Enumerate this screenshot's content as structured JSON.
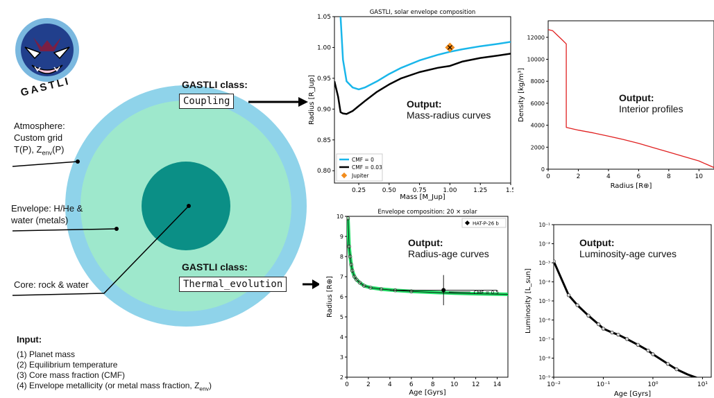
{
  "logo": {
    "text": "GASTLI"
  },
  "planet": {
    "atmosphere": [
      "Atmosphere:",
      "Custom grid",
      "T(P), Z"
    ],
    "atmosphere_sub": "env",
    "atmosphere_tail": "(P)",
    "envelope": [
      "Envelope: H/He &",
      "water (metals)"
    ],
    "core": "Core: rock & water"
  },
  "classes": {
    "label": "GASTLI class:",
    "coupling": "Coupling",
    "thermal": "Thermal_evolution"
  },
  "inputs": {
    "title": "Input:",
    "items": [
      "(1) Planet mass",
      "(2) Equilibrium temperature",
      "(3) Core mass fraction (CMF)",
      "(4) Envelope metallicity (or metal mass fraction, Z"
    ],
    "last_sub": "env",
    "last_tail": ")"
  },
  "outputs": {
    "mass_radius": {
      "title": "Output:",
      "sub": "Mass-radius curves"
    },
    "interior": {
      "title": "Output:",
      "sub": "Interior profiles"
    },
    "radius_age": {
      "title": "Output:",
      "sub": "Radius-age curves"
    },
    "lum_age": {
      "title": "Output:",
      "sub": "Luminosity-age curves"
    }
  },
  "colors": {
    "atmosphere": "#8fd3ea",
    "envelope": "#9ee8cc",
    "core": "#0b8f86",
    "cmf0": "#19b6ea",
    "cmf003": "#000000",
    "density": "#e02020",
    "jupiter": "#f28c1c",
    "evolution": "#22dd66"
  },
  "chart_data": [
    {
      "type": "line",
      "title": "GASTLI, solar envelope composition",
      "xlabel": "Mass [M_Jup]",
      "ylabel": "Radius [R_Jup]",
      "xlim": [
        0.05,
        1.5
      ],
      "ylim": [
        0.78,
        1.05
      ],
      "xticks": [
        "0.25",
        "0.50",
        "0.75",
        "1.00",
        "1.25",
        "1.5"
      ],
      "yticks": [
        "0.80",
        "0.85",
        "0.90",
        "0.95",
        "1.00",
        "1.05"
      ],
      "series": [
        {
          "name": "CMF = 0",
          "color": "#19b6ea",
          "x": [
            0.1,
            0.12,
            0.15,
            0.2,
            0.25,
            0.3,
            0.4,
            0.5,
            0.6,
            0.75,
            0.9,
            1.0,
            1.1,
            1.25,
            1.4,
            1.5
          ],
          "y": [
            1.05,
            0.98,
            0.945,
            0.935,
            0.932,
            0.935,
            0.945,
            0.957,
            0.967,
            0.979,
            0.988,
            0.993,
            0.997,
            1.002,
            1.006,
            1.009
          ]
        },
        {
          "name": "CMF = 0.03",
          "color": "#000000",
          "x": [
            0.05,
            0.08,
            0.1,
            0.12,
            0.15,
            0.2,
            0.25,
            0.3,
            0.4,
            0.5,
            0.6,
            0.75,
            0.9,
            1.0,
            1.1,
            1.25,
            1.4,
            1.5
          ],
          "y": [
            0.945,
            0.92,
            0.895,
            0.893,
            0.892,
            0.897,
            0.905,
            0.913,
            0.928,
            0.94,
            0.95,
            0.96,
            0.967,
            0.97,
            0.977,
            0.983,
            0.987,
            0.99
          ]
        }
      ],
      "points": [
        {
          "name": "Jupiter",
          "x": 1.0,
          "y": 1.0,
          "color": "#f28c1c"
        }
      ],
      "legend": "bottom-left"
    },
    {
      "type": "line",
      "title": "",
      "xlabel": "Radius [R⊕]",
      "ylabel": "Density [kg/m³]",
      "xlim": [
        0,
        11
      ],
      "ylim": [
        0,
        13500
      ],
      "xticks": [
        "0",
        "2",
        "4",
        "6",
        "8",
        "10"
      ],
      "yticks": [
        "0",
        "2000",
        "4000",
        "6000",
        "8000",
        "10000",
        "12000"
      ],
      "series": [
        {
          "name": "",
          "color": "#e02020",
          "x": [
            0,
            0.3,
            0.6,
            0.9,
            1.2,
            1.2,
            2,
            3,
            4,
            5,
            6,
            7,
            8,
            9,
            10,
            10.5,
            11
          ],
          "y": [
            12700,
            12600,
            12200,
            11800,
            11400,
            3800,
            3550,
            3300,
            3000,
            2700,
            2350,
            1950,
            1550,
            1150,
            750,
            450,
            150
          ]
        }
      ]
    },
    {
      "type": "line",
      "title": "Envelope composition: 20 × solar",
      "xlabel": "Age [Gyrs]",
      "ylabel": "Radius [R⊕]",
      "xlim": [
        0,
        15
      ],
      "ylim": [
        2,
        10
      ],
      "xticks": [
        "0",
        "2",
        "4",
        "6",
        "8",
        "10",
        "12",
        "14"
      ],
      "yticks": [
        "2",
        "3",
        "4",
        "5",
        "6",
        "7",
        "8",
        "9",
        "10"
      ],
      "series": [
        {
          "name": "CMF = 0.5",
          "color": "#22dd66",
          "x": [
            0.1,
            0.2,
            0.3,
            0.4,
            0.5,
            0.7,
            0.9,
            1.2,
            1.6,
            2.2,
            3.2,
            4.5,
            6,
            8,
            10,
            12,
            15
          ],
          "y": [
            9.9,
            8.5,
            8.0,
            7.6,
            7.3,
            7.0,
            6.85,
            6.7,
            6.55,
            6.45,
            6.38,
            6.32,
            6.27,
            6.22,
            6.18,
            6.15,
            6.12
          ]
        }
      ],
      "points": [
        {
          "name": "HAT-P-26 b",
          "x": 9.0,
          "y": 6.33,
          "xerr": 5.0,
          "yerr": 0.75
        }
      ],
      "legend": "top-right"
    },
    {
      "type": "line",
      "title": "",
      "xlabel": "Age [Gyrs]",
      "ylabel": "Luminosity [L_sun]",
      "xscale": "log",
      "yscale": "log",
      "xlim": [
        0.01,
        15
      ],
      "ylim": [
        1e-09,
        0.1
      ],
      "xticks": [
        "10⁻²",
        "10⁻¹",
        "10⁰",
        "10¹"
      ],
      "yticks": [
        "10⁻⁹",
        "10⁻⁸",
        "10⁻⁷",
        "10⁻⁶",
        "10⁻⁵",
        "10⁻⁴",
        "10⁻³",
        "10⁻²",
        "10⁻¹"
      ],
      "series": [
        {
          "name": "",
          "color": "#000000",
          "x": [
            0.01,
            0.02,
            0.03,
            0.05,
            0.08,
            0.1,
            0.15,
            0.2,
            0.3,
            0.5,
            0.8,
            1,
            2,
            3,
            5,
            8,
            12,
            15
          ],
          "y": [
            0.0012,
            2e-05,
            6e-06,
            1.7e-06,
            6e-07,
            3.5e-07,
            2.2e-07,
            1.7e-07,
            1e-07,
            5e-08,
            2.5e-08,
            1.6e-08,
            5e-09,
            2.6e-09,
            1.4e-09,
            9e-10,
            7e-10,
            6e-10
          ]
        }
      ]
    }
  ]
}
